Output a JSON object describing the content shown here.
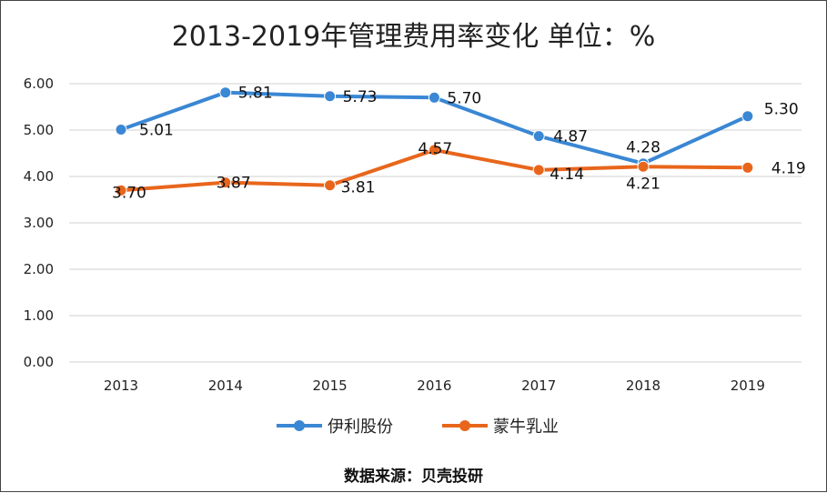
{
  "chart_data": {
    "type": "line",
    "title": "2013-2019年管理费用率变化 单位：%",
    "categories": [
      "2013",
      "2014",
      "2015",
      "2016",
      "2017",
      "2018",
      "2019"
    ],
    "series": [
      {
        "name": "伊利股份",
        "color": "#3a87d4",
        "values": [
          5.01,
          5.81,
          5.73,
          5.7,
          4.87,
          4.28,
          5.3
        ]
      },
      {
        "name": "蒙牛乳业",
        "color": "#e8661c",
        "values": [
          3.7,
          3.87,
          3.81,
          4.57,
          4.14,
          4.21,
          4.19
        ]
      }
    ],
    "ylim": [
      0,
      6
    ],
    "yticks": [
      "0.00",
      "1.00",
      "2.00",
      "3.00",
      "4.00",
      "5.00",
      "6.00"
    ],
    "grid": true,
    "legend": "bottom",
    "xlabel": "",
    "ylabel": ""
  },
  "source": "数据来源：贝壳投研"
}
